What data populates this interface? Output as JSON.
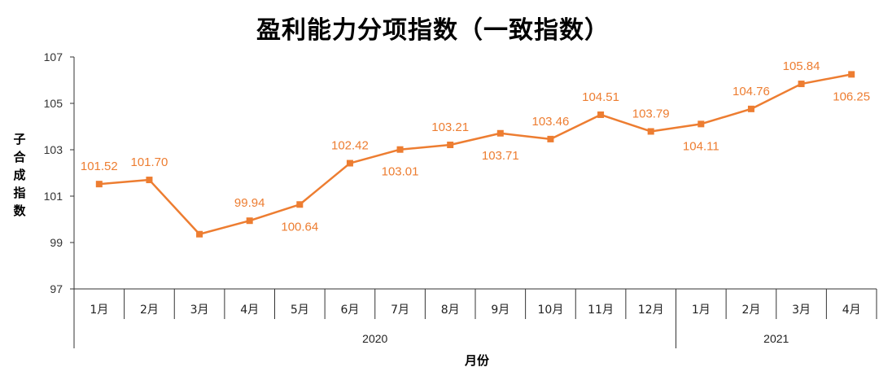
{
  "chart_data": {
    "type": "line",
    "title": "盈利能力分项指数（一致指数）",
    "ylabel": "子合成指数",
    "xlabel": "月份",
    "ylim": [
      97,
      107
    ],
    "yticks": [
      "97",
      "99",
      "101",
      "103",
      "105",
      "107"
    ],
    "categories": [
      "1月",
      "2月",
      "3月",
      "4月",
      "5月",
      "6月",
      "7月",
      "8月",
      "9月",
      "10月",
      "11月",
      "12月",
      "1月",
      "2月",
      "3月",
      "4月"
    ],
    "year_groups": [
      {
        "label": "2020",
        "count": 12
      },
      {
        "label": "2021",
        "count": 4
      }
    ],
    "series": [
      {
        "color": "#ED7D31",
        "values": [
          101.52,
          101.7,
          99.36,
          99.94,
          100.64,
          102.42,
          103.01,
          103.21,
          103.71,
          103.46,
          104.51,
          103.79,
          104.11,
          104.76,
          105.84,
          106.25
        ],
        "data_labels": [
          "101.52",
          "101.70",
          "",
          "99.94",
          "100.64",
          "102.42",
          "103.01",
          "103.21",
          "103.71",
          "103.46",
          "104.51",
          "103.79",
          "104.11",
          "104.76",
          "105.84",
          "106.25"
        ],
        "label_position": [
          "above",
          "above",
          "none",
          "above",
          "below",
          "above",
          "below",
          "above",
          "below",
          "above",
          "above",
          "above",
          "below",
          "above",
          "above",
          "below"
        ]
      }
    ],
    "grid": false,
    "legend": "none"
  }
}
